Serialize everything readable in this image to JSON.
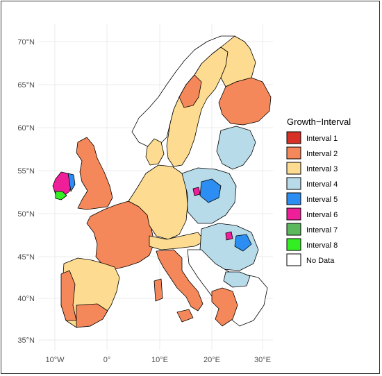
{
  "map": {
    "lat_labels": [
      "70°N",
      "65°N",
      "60°N",
      "55°N",
      "50°N",
      "45°N",
      "40°N",
      "35°N"
    ],
    "lon_labels": [
      "10°W",
      "0°",
      "10°E",
      "20°E",
      "30°E"
    ]
  },
  "legend": {
    "title": "Growth−Interval",
    "items": [
      {
        "label": "Interval 1",
        "color": "#d73027"
      },
      {
        "label": "Interval 2",
        "color": "#f4885a"
      },
      {
        "label": "Interval 3",
        "color": "#fddc91"
      },
      {
        "label": "Interval 4",
        "color": "#b7dbe8"
      },
      {
        "label": "Interval 5",
        "color": "#2c8ef2"
      },
      {
        "label": "Interval 6",
        "color": "#ef1f9a"
      },
      {
        "label": "Interval 7",
        "color": "#5bb85c"
      },
      {
        "label": "Interval 8",
        "color": "#33ee22"
      },
      {
        "label": "No Data",
        "color": "#ffffff"
      }
    ]
  }
}
